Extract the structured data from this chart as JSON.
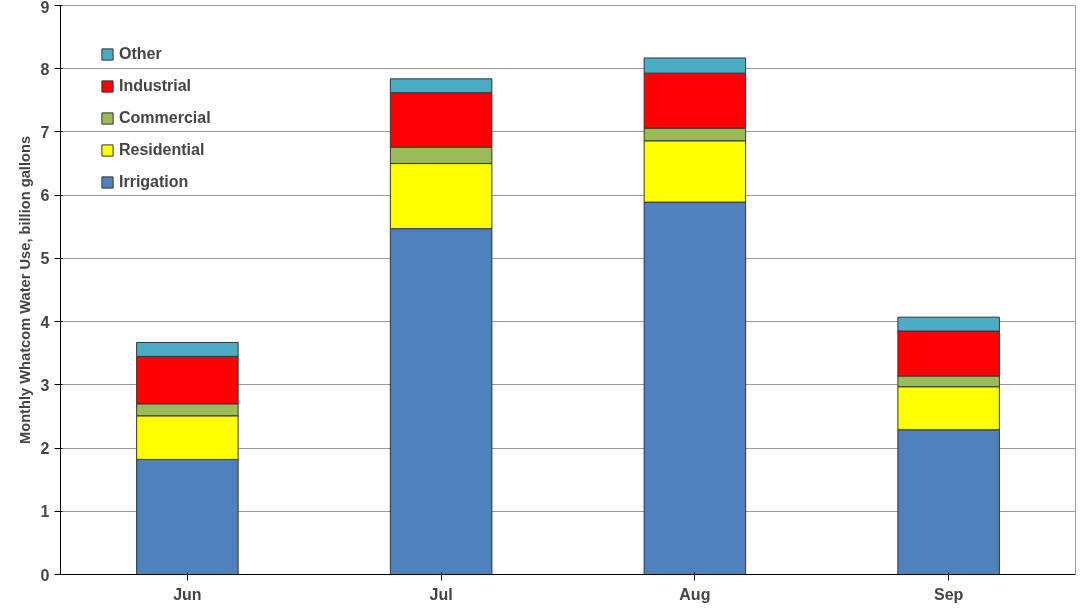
{
  "chart_data": {
    "type": "bar",
    "stacked": true,
    "ylabel": "Monthly Whatcom Water Use, billion gallons",
    "categories": [
      "Jun",
      "Jul",
      "Aug",
      "Sep"
    ],
    "series": [
      {
        "name": "Irrigation",
        "color": "#4f81bd",
        "values": [
          1.82,
          5.47,
          5.89,
          2.29
        ]
      },
      {
        "name": "Residential",
        "color": "#ffff00",
        "values": [
          0.69,
          1.03,
          0.97,
          0.68
        ]
      },
      {
        "name": "Commercial",
        "color": "#9bbb59",
        "values": [
          0.19,
          0.26,
          0.2,
          0.17
        ]
      },
      {
        "name": "Industrial",
        "color": "#ff0000",
        "values": [
          0.75,
          0.86,
          0.87,
          0.71
        ]
      },
      {
        "name": "Other",
        "color": "#4bacc6",
        "values": [
          0.22,
          0.22,
          0.24,
          0.22
        ]
      }
    ],
    "ylim": [
      0,
      9
    ],
    "yticks": [
      0,
      1,
      2,
      3,
      4,
      5,
      6,
      7,
      8,
      9
    ],
    "grid": "y",
    "legend": "top left"
  }
}
